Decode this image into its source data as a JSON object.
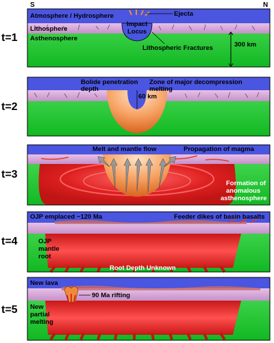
{
  "directions": {
    "south": "S",
    "north": "N"
  },
  "panels": [
    {
      "time": "t=1",
      "labels": {
        "atmosphere": "Atmosphere / Hydrosphere",
        "lithosphere": "Lithosphere",
        "asthenosphere": "Asthenosphere",
        "ejecta": "Ejecta",
        "impact_line1": "Impact",
        "impact_line2": "Locus",
        "fractures": "Lithospheric Fractures",
        "scale": "300 km"
      }
    },
    {
      "time": "t=2",
      "labels": {
        "bolide_line1": "Bolide penetration",
        "bolide_line2": "depth",
        "decomp_line1": "Zone of major decompression",
        "decomp_line2": "melting",
        "depth": "60 km"
      }
    },
    {
      "time": "t=3",
      "labels": {
        "melt_flow": "Melt and mantle flow",
        "propagation": "Propagation of magma",
        "formation_line1": "Formation of",
        "formation_line2": "anomalous",
        "formation_line3": "asthenosphere"
      }
    },
    {
      "time": "t=4",
      "labels": {
        "ojp_emplaced": "OJP emplaced ~120 Ma",
        "feeder": "Feeder dikes of basin basalts",
        "root_line1": "OJP",
        "root_line2": "mantle",
        "root_line3": "root",
        "root_depth": "Root Depth Unknown"
      }
    },
    {
      "time": "t=5",
      "labels": {
        "new_lava": "New lava",
        "rifting": "90 Ma rifting",
        "partial_line1": "New",
        "partial_line2": "partial",
        "partial_line3": "melting"
      }
    }
  ],
  "colors": {
    "atmosphere": "#4a55e0",
    "lithosphere": "#d8a8d8",
    "asthenosphere": "#22cc33",
    "melt": "#e02020",
    "bolide_orange": "#f08a3a"
  }
}
